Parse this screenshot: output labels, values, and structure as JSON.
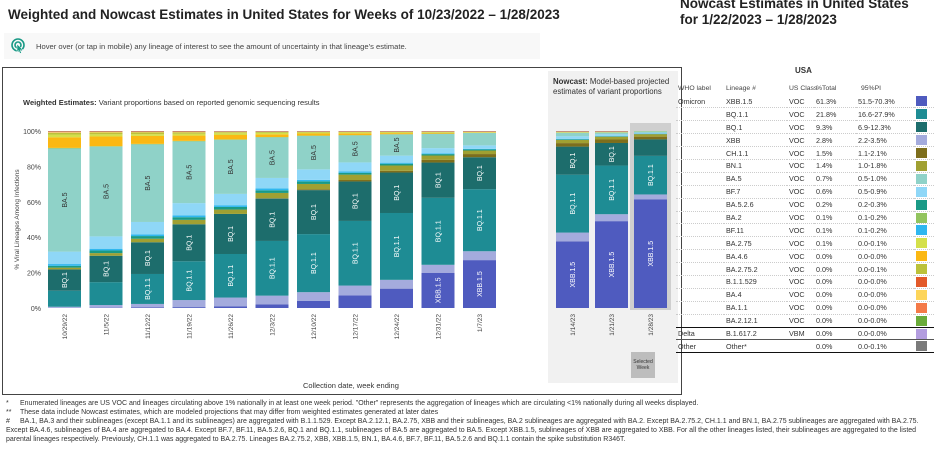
{
  "page": {
    "title": "Weighted and Nowcast Estimates in United States for Weeks of 10/23/2022 – 1/28/2023",
    "hint_icon": "tap-pointer-icon",
    "hint_text": "Hover over (or tap in mobile) any lineage of interest to see the amount of uncertainty in that lineage's estimate."
  },
  "weighted": {
    "subtitle_bold": "Weighted Estimates:",
    "subtitle_rest": " Variant proportions based on reported genomic sequencing results",
    "ylabel": "% Viral Lineages Among Infections",
    "xlabel": "Collection date, week ending"
  },
  "nowcast": {
    "subtitle_bold": "Nowcast:",
    "subtitle_rest": " Model-based projected estimates of variant proportions",
    "selected_week_label": "Selected Week"
  },
  "chart_data": {
    "type": "bar",
    "stacked": true,
    "title": "Weighted and Nowcast Estimates in United States",
    "xlabel": "Collection date, week ending",
    "ylabel": "% Viral Lineages Among Infections",
    "ylim": [
      0,
      100
    ],
    "yticks": [
      "0%",
      "20%",
      "40%",
      "60%",
      "80%",
      "100%"
    ],
    "lineage_order_bottom_to_top": [
      "XBB.1.5",
      "XBB",
      "BQ.1.1",
      "BQ.1",
      "CH.1.1",
      "BN.1",
      "BA.5.2.6",
      "BF.11",
      "BF.7",
      "BA.5",
      "BA.2",
      "BA.4.6",
      "BA.2.75",
      "BA.2.75.2",
      "BA.4",
      "BA.1.1",
      "Other"
    ],
    "colors": {
      "XBB.1.5": "#4f5bbf",
      "XBB": "#a4abdd",
      "BQ.1.1": "#1e8c94",
      "BQ.1": "#1d6d6c",
      "CH.1.1": "#7d6e1c",
      "BN.1": "#a0a032",
      "BA.5.2.6": "#1a9a86",
      "BF.11": "#2fb7ef",
      "BF.7": "#8fd7f7",
      "BA.5": "#8fd2c8",
      "BA.2": "#92c45e",
      "BA.4.6": "#fbb813",
      "BA.2.75": "#d4e04a",
      "BA.2.75.2": "#bcc23a",
      "BA.4": "#fdd55a",
      "BA.1.1": "#f47a48",
      "Other": "#7a7a7a"
    },
    "weighted_weeks": [
      "10/29/22",
      "11/5/22",
      "11/12/22",
      "11/19/22",
      "11/26/22",
      "12/3/22",
      "12/10/22",
      "12/17/22",
      "12/24/22",
      "12/31/22",
      "1/7/23"
    ],
    "nowcast_weeks": [
      "1/14/23",
      "1/21/23",
      "1/28/23"
    ],
    "selected_week": "1/28/23",
    "series": [
      {
        "name": "XBB.1.5",
        "values": [
          0.1,
          0.2,
          0.3,
          0.5,
          1.0,
          2.0,
          4.0,
          7.0,
          11.0,
          20.0,
          27.0,
          38.0,
          50.0,
          61.3
        ]
      },
      {
        "name": "XBB",
        "values": [
          0.6,
          1.5,
          2.0,
          4.0,
          5.0,
          5.0,
          5.0,
          5.5,
          5.0,
          4.5,
          5.0,
          5.0,
          4.0,
          2.8
        ]
      },
      {
        "name": "BQ.1.1",
        "values": [
          9.0,
          13.0,
          17.0,
          22.0,
          25.0,
          31.0,
          33.0,
          36.0,
          38.0,
          38.0,
          35.0,
          33.0,
          28.0,
          21.8
        ]
      },
      {
        "name": "BQ.1",
        "values": [
          12.0,
          15.0,
          18.0,
          21.0,
          23.0,
          24.0,
          25.0,
          22.0,
          23.0,
          20.0,
          18.0,
          16.0,
          13.0,
          9.3
        ]
      },
      {
        "name": "CH.1.1",
        "values": [
          0.0,
          0.0,
          0.0,
          0.0,
          0.0,
          0.2,
          0.5,
          0.8,
          1.0,
          1.5,
          1.8,
          2.0,
          2.0,
          1.5
        ]
      },
      {
        "name": "BN.1",
        "values": [
          1.0,
          1.5,
          2.0,
          2.5,
          2.5,
          3.0,
          3.0,
          3.0,
          3.0,
          2.5,
          2.0,
          1.8,
          1.6,
          1.4
        ]
      },
      {
        "name": "BA.5.2.6",
        "values": [
          1.0,
          1.5,
          1.5,
          1.5,
          1.5,
          1.5,
          1.5,
          1.0,
          1.0,
          0.8,
          0.6,
          0.4,
          0.3,
          0.2
        ]
      },
      {
        "name": "BF.11",
        "values": [
          1.0,
          1.0,
          1.0,
          1.0,
          1.0,
          1.0,
          0.8,
          0.8,
          0.6,
          0.4,
          0.3,
          0.2,
          0.1,
          0.1
        ]
      },
      {
        "name": "BF.7",
        "values": [
          7.0,
          7.0,
          7.0,
          7.0,
          6.5,
          6.0,
          6.0,
          5.0,
          4.0,
          3.0,
          2.0,
          1.5,
          1.0,
          0.6
        ]
      },
      {
        "name": "BA.5",
        "values": [
          58.0,
          51.0,
          44.0,
          35.0,
          31.0,
          23.0,
          19.0,
          15.0,
          12.0,
          8.0,
          7.0,
          2.0,
          1.0,
          0.7
        ]
      },
      {
        "name": "BA.2",
        "values": [
          0.3,
          0.3,
          0.3,
          0.3,
          0.3,
          0.2,
          0.2,
          0.2,
          0.2,
          0.2,
          0.1,
          0.1,
          0.1,
          0.1
        ]
      },
      {
        "name": "BA.4.6",
        "values": [
          6.0,
          5.5,
          4.5,
          3.0,
          2.5,
          1.5,
          1.2,
          1.0,
          0.6,
          0.4,
          0.2,
          0.1,
          0.1,
          0.0
        ]
      },
      {
        "name": "BA.2.75",
        "values": [
          1.5,
          1.2,
          1.0,
          1.0,
          1.0,
          0.8,
          0.5,
          0.5,
          0.4,
          0.3,
          0.2,
          0.2,
          0.1,
          0.1
        ]
      },
      {
        "name": "BA.2.75.2",
        "values": [
          1.0,
          1.0,
          1.0,
          0.8,
          0.6,
          0.5,
          0.3,
          0.2,
          0.2,
          0.2,
          0.1,
          0.1,
          0.1,
          0.0
        ]
      },
      {
        "name": "BA.4",
        "values": [
          0.3,
          0.3,
          0.2,
          0.2,
          0.2,
          0.1,
          0.1,
          0.1,
          0.1,
          0.1,
          0.0,
          0.0,
          0.0,
          0.0
        ]
      },
      {
        "name": "BA.1.1",
        "values": [
          0.5,
          0.4,
          0.4,
          0.4,
          0.3,
          0.3,
          0.3,
          0.3,
          0.3,
          0.3,
          0.3,
          0.3,
          0.3,
          0.0
        ]
      },
      {
        "name": "Other",
        "values": [
          0.2,
          0.2,
          0.2,
          0.2,
          0.2,
          0.2,
          0.2,
          0.2,
          0.2,
          0.2,
          0.2,
          0.2,
          0.2,
          0.0
        ]
      }
    ],
    "bar_labels": [
      {
        "week": "10/29/22",
        "labels": [
          "BQ.1",
          "BA.5"
        ]
      },
      {
        "week": "11/5/22",
        "labels": [
          "BQ.1",
          "BA.5"
        ]
      },
      {
        "week": "11/12/22",
        "labels": [
          "BQ.1.1",
          "BQ.1",
          "BA.5"
        ]
      },
      {
        "week": "11/19/22",
        "labels": [
          "BQ.1.1",
          "BQ.1",
          "BA.5"
        ]
      },
      {
        "week": "11/26/22",
        "labels": [
          "BQ.1.1",
          "BQ.1",
          "BA.5"
        ]
      },
      {
        "week": "12/3/22",
        "labels": [
          "BQ.1.1",
          "BQ.1",
          "BA.5"
        ]
      },
      {
        "week": "12/10/22",
        "labels": [
          "BQ.1.1",
          "BQ.1",
          "BA.5"
        ]
      },
      {
        "week": "12/17/22",
        "labels": [
          "BQ.1.1",
          "BQ.1",
          "BA.5"
        ]
      },
      {
        "week": "12/24/22",
        "labels": [
          "BQ.1.1",
          "BQ.1",
          "BA.5"
        ]
      },
      {
        "week": "12/31/22",
        "labels": [
          "XBB.1.5",
          "BQ.1.1",
          "BQ.1"
        ]
      },
      {
        "week": "1/7/23",
        "labels": [
          "XBB.1.5",
          "BQ.1.1",
          "BQ.1"
        ]
      },
      {
        "week": "1/14/23",
        "labels": [
          "XBB.1.5",
          "BQ.1.1",
          "BQ.1"
        ]
      },
      {
        "week": "1/21/23",
        "labels": [
          "XBB.1.5",
          "BQ.1.1",
          "BQ.1"
        ]
      },
      {
        "week": "1/28/23",
        "labels": [
          "XBB.1.5",
          "BQ.1.1"
        ]
      }
    ],
    "legend": "table-right"
  },
  "nowcast_table": {
    "title_line1": "Nowcast Estimates in United States",
    "title_line2": "for 1/22/2023 – 1/28/2023",
    "region": "USA",
    "headers": [
      "WHO label",
      "Lineage #",
      "US Class",
      "%Total",
      "95%PI"
    ],
    "rows": [
      {
        "who": "Omicron",
        "lineage": "XBB.1.5",
        "cls": "VOC",
        "total": "61.3%",
        "pi": "51.5-70.3%",
        "color": "#4f5bbf"
      },
      {
        "who": "",
        "lineage": "BQ.1.1",
        "cls": "VOC",
        "total": "21.8%",
        "pi": "16.6-27.9%",
        "color": "#1e8c94"
      },
      {
        "who": "",
        "lineage": "BQ.1",
        "cls": "VOC",
        "total": "9.3%",
        "pi": "6.9-12.3%",
        "color": "#1d6d6c"
      },
      {
        "who": "",
        "lineage": "XBB",
        "cls": "VOC",
        "total": "2.8%",
        "pi": "2.2-3.5%",
        "color": "#a4abdd"
      },
      {
        "who": "",
        "lineage": "CH.1.1",
        "cls": "VOC",
        "total": "1.5%",
        "pi": "1.1-2.1%",
        "color": "#7d6e1c"
      },
      {
        "who": "",
        "lineage": "BN.1",
        "cls": "VOC",
        "total": "1.4%",
        "pi": "1.0-1.8%",
        "color": "#a0a032"
      },
      {
        "who": "",
        "lineage": "BA.5",
        "cls": "VOC",
        "total": "0.7%",
        "pi": "0.5-1.0%",
        "color": "#8fd2c8"
      },
      {
        "who": "",
        "lineage": "BF.7",
        "cls": "VOC",
        "total": "0.6%",
        "pi": "0.5-0.9%",
        "color": "#8fd7f7"
      },
      {
        "who": "",
        "lineage": "BA.5.2.6",
        "cls": "VOC",
        "total": "0.2%",
        "pi": "0.2-0.3%",
        "color": "#1a9a86"
      },
      {
        "who": "",
        "lineage": "BA.2",
        "cls": "VOC",
        "total": "0.1%",
        "pi": "0.1-0.2%",
        "color": "#92c45e"
      },
      {
        "who": "",
        "lineage": "BF.11",
        "cls": "VOC",
        "total": "0.1%",
        "pi": "0.1-0.2%",
        "color": "#2fb7ef"
      },
      {
        "who": "",
        "lineage": "BA.2.75",
        "cls": "VOC",
        "total": "0.1%",
        "pi": "0.0-0.1%",
        "color": "#d4e04a"
      },
      {
        "who": "",
        "lineage": "BA.4.6",
        "cls": "VOC",
        "total": "0.0%",
        "pi": "0.0-0.0%",
        "color": "#fbb813"
      },
      {
        "who": "",
        "lineage": "BA.2.75.2",
        "cls": "VOC",
        "total": "0.0%",
        "pi": "0.0-0.1%",
        "color": "#bcc23a"
      },
      {
        "who": "",
        "lineage": "B.1.1.529",
        "cls": "VOC",
        "total": "0.0%",
        "pi": "0.0-0.0%",
        "color": "#e35a2a"
      },
      {
        "who": "",
        "lineage": "BA.4",
        "cls": "VOC",
        "total": "0.0%",
        "pi": "0.0-0.0%",
        "color": "#fdd55a"
      },
      {
        "who": "",
        "lineage": "BA.1.1",
        "cls": "VOC",
        "total": "0.0%",
        "pi": "0.0-0.0%",
        "color": "#f47a48"
      },
      {
        "who": "",
        "lineage": "BA.2.12.1",
        "cls": "VOC",
        "total": "0.0%",
        "pi": "0.0-0.0%",
        "color": "#6aab3a"
      },
      {
        "who": "Delta",
        "lineage": "B.1.617.2",
        "cls": "VBM",
        "total": "0.0%",
        "pi": "0.0-0.0%",
        "color": "#b39ddf"
      },
      {
        "who": "Other",
        "lineage": "Other*",
        "cls": "",
        "total": "0.0%",
        "pi": "0.0-0.1%",
        "color": "#7a7a7a"
      }
    ]
  },
  "footnotes": [
    {
      "mark": "*",
      "text": "Enumerated lineages are US VOC and lineages circulating above 1% nationally in at least one week period. \"Other\" represents the aggregation of lineages which are circulating <1% nationally during all weeks displayed."
    },
    {
      "mark": "**",
      "text": "These data include Nowcast estimates, which are modeled projections that may differ from weighted estimates generated at later dates"
    },
    {
      "mark": "#",
      "text": "BA.1, BA.3 and their sublineages (except BA.1.1 and its sublineages) are aggregated with B.1.1.529. Except BA.2.12.1, BA.2.75, XBB and their sublineages, BA.2 sublineages are aggregated with BA.2. Except BA.2.75.2, CH.1.1 and BN.1, BA.2.75 sublineages are aggregated with BA.2.75. Except BA.4.6, sublineages of BA.4 are aggregated to BA.4. Except BF.7, BF.11, BA.5.2.6, BQ.1 and BQ.1.1, sublineages of BA.5 are aggregated to BA.5. Except XBB.1.5, sublineages of XBB are aggregated to XBB. For all the other lineages listed, their sublineages are aggregated to the listed parental lineages respectively. Previously, CH.1.1 was aggregated to BA.2.75. Lineages BA.2.75.2, XBB, XBB.1.5, BN.1, BA.4.6, BF.7, BF.11, BA.5.2.6 and BQ.1.1 contain the spike substitution R346T."
    }
  ]
}
